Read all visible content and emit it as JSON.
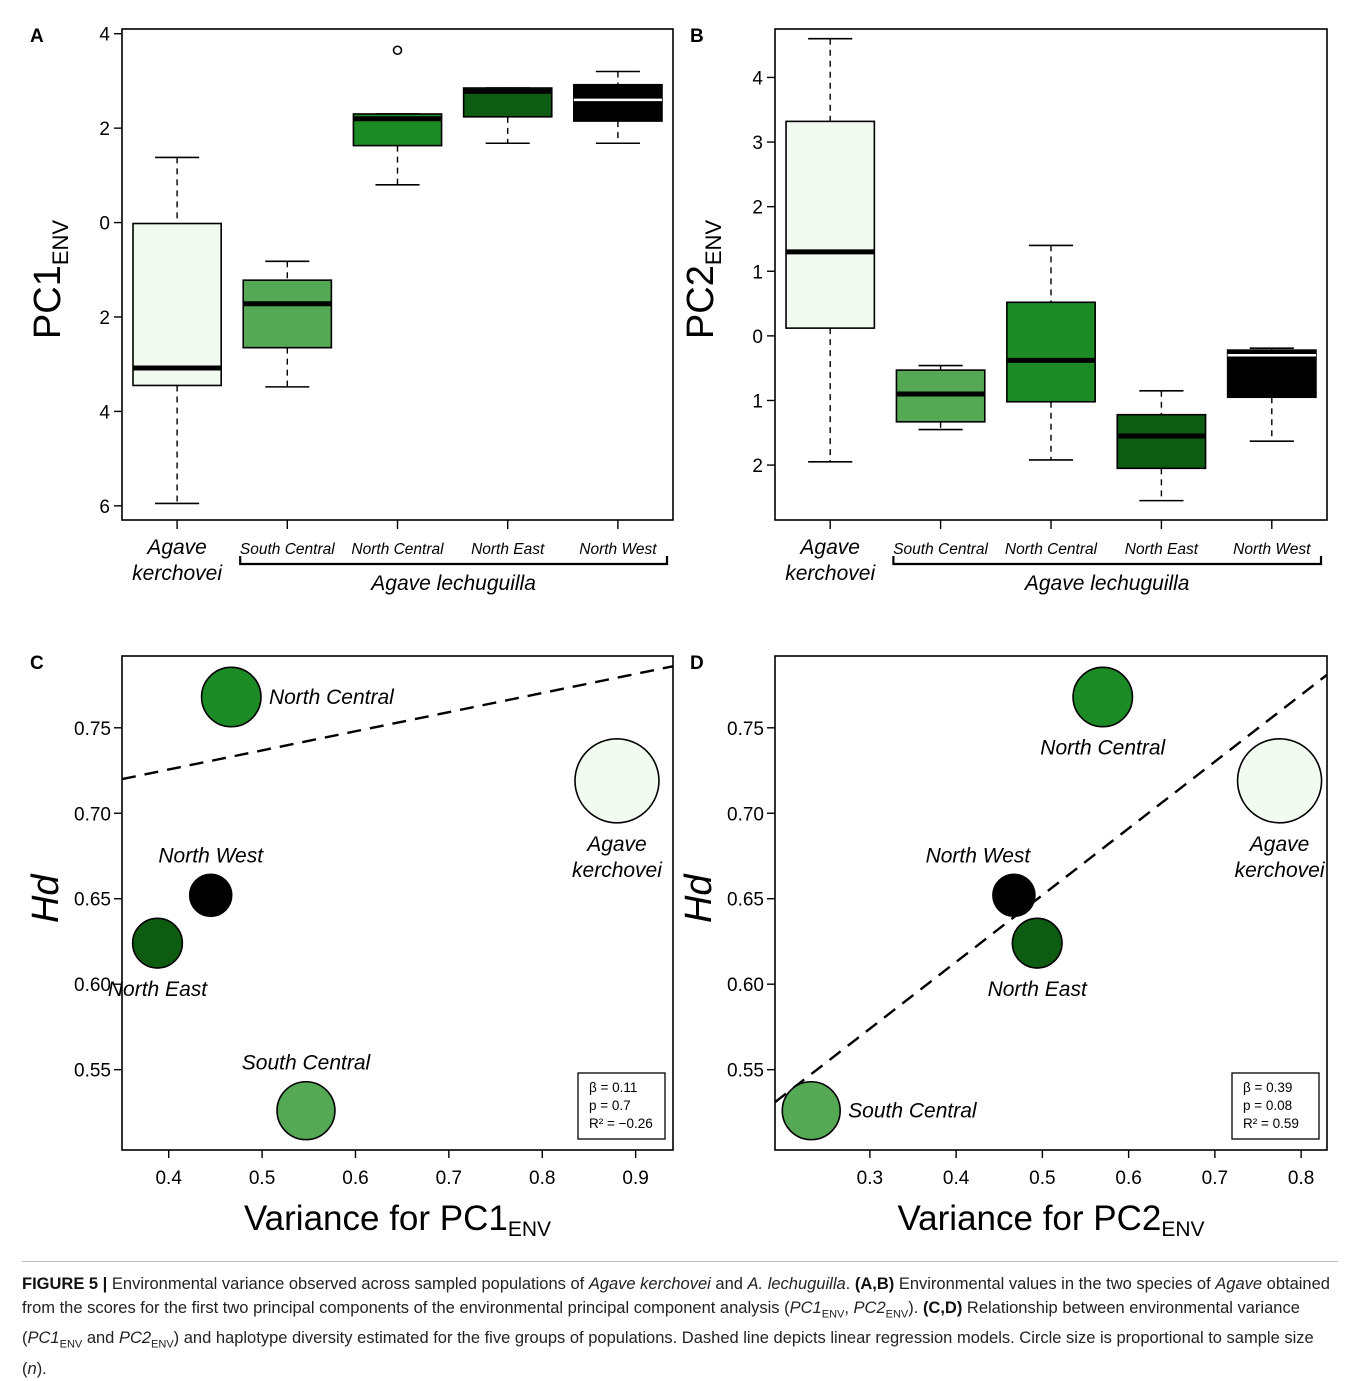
{
  "figure": {
    "caption": {
      "label": "FIGURE 5 |",
      "text": "Environmental variance observed across sampled populations of Agave kerchovei and A. lechuguilla. (A,B) Environmental values in the two species of Agave obtained from the scores for the first two principal components of the environmental principal component analysis (PC1ENV, PC2ENV). (C,D) Relationship between environmental variance (PC1ENV and PC2ENV) and haplotype diversity estimated for the five groups of populations. Dashed line depicts linear regression models. Circle size is proportional to sample size (n).",
      "runs": [
        {
          "t": "FIGURE 5 |",
          "b": true
        },
        {
          "t": " Environmental variance observed across sampled populations of "
        },
        {
          "t": "Agave kerchovei",
          "i": true
        },
        {
          "t": " and "
        },
        {
          "t": "A. lechuguilla",
          "i": true
        },
        {
          "t": ". "
        },
        {
          "t": "(A,B)",
          "b": true
        },
        {
          "t": " Environmental values in the two species of "
        },
        {
          "t": "Agave",
          "i": true
        },
        {
          "t": " obtained from the scores for the first two principal components of the environmental principal component analysis ("
        },
        {
          "t": "PC1",
          "i": true
        },
        {
          "t": "ENV",
          "sub": true
        },
        {
          "t": ", "
        },
        {
          "t": "PC2",
          "i": true
        },
        {
          "t": "ENV",
          "sub": true
        },
        {
          "t": "). "
        },
        {
          "t": "(C,D)",
          "b": true
        },
        {
          "t": " Relationship between environmental variance ("
        },
        {
          "t": "PC1",
          "i": true
        },
        {
          "t": "ENV",
          "sub": true
        },
        {
          "t": " and "
        },
        {
          "t": "PC2",
          "i": true
        },
        {
          "t": "ENV",
          "sub": true
        },
        {
          "t": ") and haplotype diversity estimated for the five groups of populations. Dashed line depicts linear regression models. Circle size is proportional to sample size ("
        },
        {
          "t": "n",
          "i": true
        },
        {
          "t": ")."
        }
      ]
    },
    "colors": {
      "Agave kerchovei": "#f1fbef",
      "South Central": "#55a955",
      "North Central": "#1c8a25",
      "North East": "#0d5c12",
      "North West": "#000000"
    }
  },
  "chart_data": [
    {
      "panel": "A",
      "type": "box",
      "ylabel_main": "PC1",
      "ylabel_sub": "ENV",
      "ylim": [
        -6.3,
        4.1
      ],
      "yticks": [
        4,
        2,
        0,
        -2,
        -4,
        -6
      ],
      "ytick_labels": [
        "4",
        "2",
        "0",
        "2",
        "4",
        "6"
      ],
      "species_left": [
        "Agave",
        "kerchovei"
      ],
      "species_right": "Agave lechuguilla",
      "groups": [
        {
          "label": "Agave kerchovei",
          "xlabel": "",
          "min": -5.95,
          "q1": -3.45,
          "median": -3.08,
          "q3": -0.02,
          "max": 1.38,
          "outliers": []
        },
        {
          "label": "South Central",
          "xlabel": "South Central",
          "min": -3.48,
          "q1": -2.65,
          "median": -1.72,
          "q3": -1.22,
          "max": -0.82,
          "outliers": []
        },
        {
          "label": "North Central",
          "xlabel": "North Central",
          "min": 0.8,
          "q1": 1.63,
          "median": 2.2,
          "q3": 2.3,
          "max": 2.3,
          "outliers": [
            3.65
          ]
        },
        {
          "label": "North East",
          "xlabel": "North East",
          "min": 1.68,
          "q1": 2.24,
          "median": 2.78,
          "q3": 2.85,
          "max": 2.85,
          "outliers": []
        },
        {
          "label": "North West",
          "xlabel": "North West",
          "min": 1.68,
          "q1": 2.15,
          "median": 2.6,
          "q3": 2.92,
          "max": 3.2,
          "outliers": []
        }
      ]
    },
    {
      "panel": "B",
      "type": "box",
      "ylabel_main": "PC2",
      "ylabel_sub": "ENV",
      "ylim": [
        -2.85,
        4.75
      ],
      "yticks": [
        4,
        3,
        2,
        1,
        0,
        -1,
        -2
      ],
      "ytick_labels": [
        "4",
        "3",
        "2",
        "1",
        "0",
        "1",
        "2"
      ],
      "species_left": [
        "Agave",
        "kerchovei"
      ],
      "species_right": "Agave lechuguilla",
      "groups": [
        {
          "label": "Agave kerchovei",
          "xlabel": "",
          "min": -1.95,
          "q1": 0.12,
          "median": 1.3,
          "q3": 3.32,
          "max": 4.6,
          "outliers": []
        },
        {
          "label": "South Central",
          "xlabel": "South Central",
          "min": -1.45,
          "q1": -1.33,
          "median": -0.9,
          "q3": -0.53,
          "max": -0.46,
          "outliers": []
        },
        {
          "label": "North Central",
          "xlabel": "North Central",
          "min": -1.92,
          "q1": -1.02,
          "median": -0.38,
          "q3": 0.52,
          "max": 1.4,
          "outliers": []
        },
        {
          "label": "North East",
          "xlabel": "North East",
          "min": -2.55,
          "q1": -2.05,
          "median": -1.55,
          "q3": -1.22,
          "max": -0.85,
          "outliers": []
        },
        {
          "label": "North West",
          "xlabel": "North West",
          "min": -1.63,
          "q1": -0.95,
          "median": -0.3,
          "q3": -0.22,
          "max": -0.19,
          "outliers": []
        }
      ]
    },
    {
      "panel": "C",
      "type": "scatter",
      "xlabel_main": "Variance for PC1",
      "xlabel_sub": "ENV",
      "ylabel": "Hd",
      "xlim": [
        0.35,
        0.94
      ],
      "ylim": [
        0.503,
        0.792
      ],
      "xticks": [
        0.4,
        0.5,
        0.6,
        0.7,
        0.8,
        0.9
      ],
      "xtick_labels": [
        "0.4",
        "0.5",
        "0.6",
        "0.7",
        "0.8",
        "0.9"
      ],
      "yticks": [
        0.55,
        0.6,
        0.65,
        0.7,
        0.75
      ],
      "ytick_labels": [
        "0.55",
        "0.60",
        "0.65",
        "0.70",
        "0.75"
      ],
      "points": [
        {
          "name": "North Central",
          "label": [
            "North Central"
          ],
          "x": 0.467,
          "y": 0.768,
          "size": 2,
          "label_pos": "right"
        },
        {
          "name": "Agave kerchovei",
          "label": [
            "Agave",
            "kerchovei"
          ],
          "x": 0.88,
          "y": 0.719,
          "size": 6,
          "label_pos": "below"
        },
        {
          "name": "North West",
          "label": [
            "North West"
          ],
          "x": 0.445,
          "y": 0.652,
          "size": 1,
          "label_pos": "above"
        },
        {
          "name": "North East",
          "label": [
            "North East"
          ],
          "x": 0.388,
          "y": 0.624,
          "size": 1.4,
          "label_pos": "below"
        },
        {
          "name": "South Central",
          "label": [
            "South Central"
          ],
          "x": 0.547,
          "y": 0.526,
          "size": 1.9,
          "label_pos": "above"
        }
      ],
      "regression": {
        "x0": 0.35,
        "y0": 0.72,
        "x1": 0.94,
        "y1": 0.786
      },
      "stats": [
        "β = 0.11",
        "p = 0.7",
        "R² =  −0.26"
      ]
    },
    {
      "panel": "D",
      "type": "scatter",
      "xlabel_main": "Variance for PC2",
      "xlabel_sub": "ENV",
      "ylabel": "Hd",
      "xlim": [
        0.19,
        0.83
      ],
      "ylim": [
        0.503,
        0.792
      ],
      "xticks": [
        0.3,
        0.4,
        0.5,
        0.6,
        0.7,
        0.8
      ],
      "xtick_labels": [
        "0.3",
        "0.4",
        "0.5",
        "0.6",
        "0.7",
        "0.8"
      ],
      "yticks": [
        0.55,
        0.6,
        0.65,
        0.7,
        0.75
      ],
      "ytick_labels": [
        "0.55",
        "0.60",
        "0.65",
        "0.70",
        "0.75"
      ],
      "points": [
        {
          "name": "North Central",
          "label": [
            "North Central"
          ],
          "x": 0.57,
          "y": 0.768,
          "size": 2,
          "label_pos": "below"
        },
        {
          "name": "Agave kerchovei",
          "label": [
            "Agave",
            "kerchovei"
          ],
          "x": 0.775,
          "y": 0.719,
          "size": 6,
          "label_pos": "below"
        },
        {
          "name": "North West",
          "label": [
            "North West"
          ],
          "x": 0.467,
          "y": 0.652,
          "size": 1,
          "label_pos": "above-left"
        },
        {
          "name": "North East",
          "label": [
            "North East"
          ],
          "x": 0.494,
          "y": 0.624,
          "size": 1.4,
          "label_pos": "below"
        },
        {
          "name": "South Central",
          "label": [
            "South Central"
          ],
          "x": 0.232,
          "y": 0.526,
          "size": 1.9,
          "label_pos": "right"
        }
      ],
      "regression": {
        "x0": 0.19,
        "y0": 0.531,
        "x1": 0.83,
        "y1": 0.781
      },
      "stats": [
        "β = 0.39",
        "p = 0.08",
        "R² = 0.59"
      ]
    }
  ]
}
